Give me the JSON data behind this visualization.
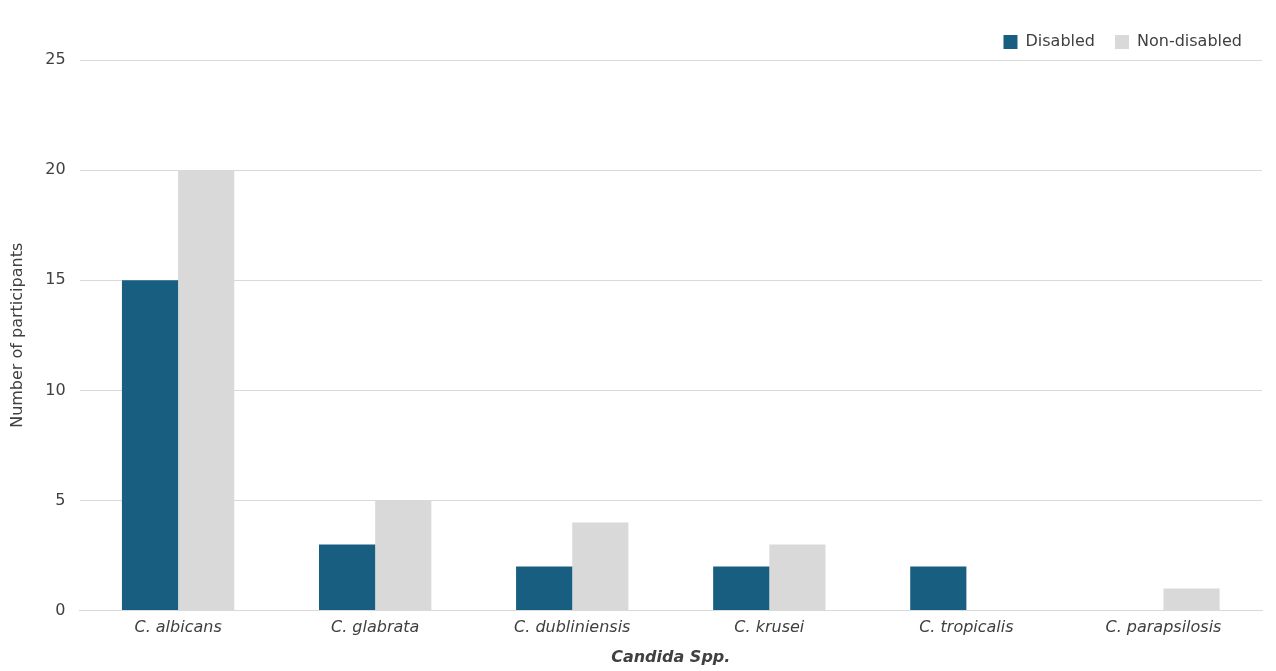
{
  "chart_data": {
    "type": "bar",
    "xlabel": "Candida Spp.",
    "ylabel": "Number of participants",
    "categories": [
      "C. albicans",
      "C. glabrata",
      "C. dubliniensis",
      "C. krusei",
      "C. tropicalis",
      "C. parapsilosis"
    ],
    "series": [
      {
        "name": "Disabled",
        "color": "#175e80",
        "values": [
          15,
          3,
          2,
          2,
          2,
          0
        ]
      },
      {
        "name": "Non-disabled",
        "color": "#d9d9d9",
        "values": [
          20,
          5,
          4,
          3,
          0,
          1
        ]
      }
    ],
    "ylim": [
      0,
      25
    ],
    "yticks": [
      0,
      5,
      10,
      15,
      20,
      25
    ],
    "grid": "y",
    "legend": "top right"
  }
}
